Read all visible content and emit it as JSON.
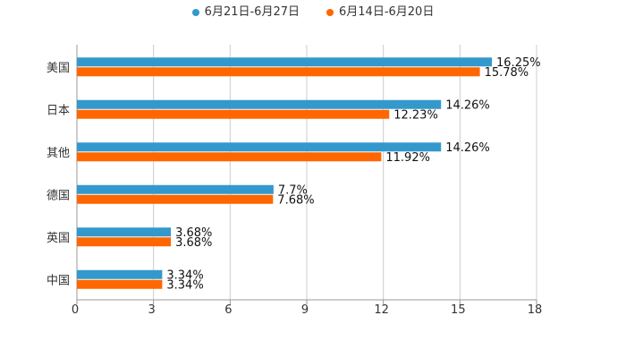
{
  "chart_data": {
    "type": "bar",
    "orientation": "horizontal",
    "categories": [
      "美国",
      "日本",
      "其他",
      "德国",
      "英国",
      "中国"
    ],
    "series": [
      {
        "name": "6月21日-6月27日",
        "color": "#3399cc",
        "values": [
          16.25,
          14.26,
          14.26,
          7.7,
          3.68,
          3.34
        ],
        "labels": [
          "16.25%",
          "14.26%",
          "14.26%",
          "7.7%",
          "3.68%",
          "3.34%"
        ]
      },
      {
        "name": "6月14日-6月20日",
        "color": "#ff6600",
        "values": [
          15.78,
          12.23,
          11.92,
          7.68,
          3.68,
          3.34
        ],
        "labels": [
          "15.78%",
          "12.23%",
          "11.92%",
          "7.68%",
          "3.68%",
          "3.34%"
        ]
      }
    ],
    "xlim": [
      0,
      18
    ],
    "xticks": [
      0,
      3,
      6,
      9,
      12,
      15,
      18
    ],
    "xtick_labels": [
      "0",
      "3",
      "6",
      "9",
      "12",
      "15",
      "18"
    ],
    "grid": true,
    "legend_position": "top-center",
    "title": "",
    "xlabel": "",
    "ylabel": ""
  }
}
